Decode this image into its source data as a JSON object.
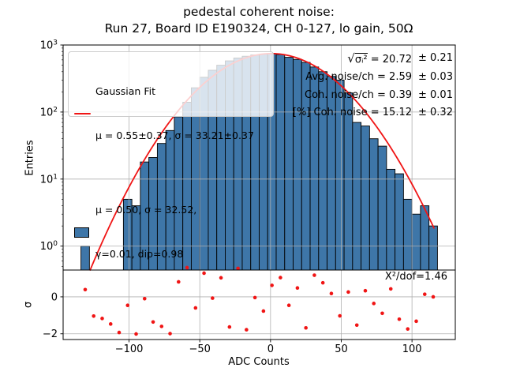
{
  "chart_data": [
    {
      "type": "bar",
      "title_line1": "pedestal coherent noise:",
      "title_line2": "Run 27, Board ID E190324, CH 0-127, lo gain, 50Ω",
      "ylabel": "Entries",
      "yscale": "log",
      "grid": true,
      "xlim": [
        -146.6,
        130.6
      ],
      "ylim": [
        0.44,
        1000
      ],
      "bin_start": -134,
      "bin_width": 6,
      "counts": [
        1,
        0,
        0,
        0,
        0,
        5,
        4,
        18,
        21,
        34,
        53,
        85,
        140,
        230,
        330,
        420,
        500,
        580,
        640,
        680,
        710,
        730,
        745,
        720,
        655,
        610,
        550,
        470,
        400,
        340,
        300,
        193,
        70,
        62,
        40,
        31,
        14,
        12,
        5,
        3,
        4,
        2
      ],
      "xticks": [
        -100,
        -50,
        0,
        50,
        100
      ],
      "xtick_labels": [
        "−100",
        "−50",
        "0",
        "50",
        "100"
      ],
      "ytick_exponents": [
        3,
        2,
        1,
        0
      ],
      "bar_color": "#3e76a8",
      "bar_edge_color": "#000000",
      "grid_color": "#b0b0b0",
      "fit_line": {
        "label": "Gaussian Fit",
        "color": "#f01515",
        "amplitude": 745,
        "mu": 0.55,
        "sigma": 33.21,
        "x_start": -127.5,
        "x_end": 116
      },
      "legend": {
        "position": "upper left",
        "gaussian_label": "Gaussian Fit",
        "gaussian_params": "μ = 0.55±0.37, σ = 33.21±0.37",
        "hist_params_line1": "μ = 0.50, σ = 32.52,",
        "hist_params_line2": "γ=0.01, dip=0.98"
      },
      "stats_box": {
        "row1": {
          "sqrt_sign": "√",
          "radicand": "σᵢ²",
          "rest": " = 20.72",
          "err": "± 0.21"
        },
        "row2": {
          "main": "Avg. noise/ch = 2.59",
          "err": "± 0.03"
        },
        "row3": {
          "main": "Coh. noise/ch = 0.39",
          "err": "± 0.01"
        },
        "row4": {
          "main": "[%] Coh. noise = 15.12",
          "err": "± 0.32"
        }
      }
    },
    {
      "type": "scatter",
      "ylabel": "σ",
      "xlabel": "ADC Counts",
      "ylim": [
        -2.31,
        1.45
      ],
      "yticks": [
        0,
        -2
      ],
      "ytick_labels": [
        "0",
        "−2"
      ],
      "marker_color": "#f01515",
      "annotation": "Χ²/dof=1.46",
      "x": [
        -131,
        -125,
        -119,
        -113,
        -107,
        -101,
        -95,
        -89,
        -83,
        -77,
        -71,
        -65,
        -59,
        -53,
        -47,
        -41,
        -35,
        -29,
        -23,
        -17,
        -11,
        -5,
        1,
        7,
        13,
        19,
        25,
        31,
        37,
        43,
        49,
        55,
        61,
        67,
        73,
        79,
        85,
        91,
        97,
        103,
        109,
        115
      ],
      "y": [
        0.39,
        -1.04,
        -1.17,
        -1.47,
        -1.93,
        -0.46,
        -2.01,
        -0.1,
        -1.36,
        -1.6,
        -1.99,
        0.81,
        1.58,
        -0.6,
        1.28,
        -0.07,
        1.03,
        -1.63,
        1.54,
        -1.78,
        -0.04,
        -0.77,
        0.62,
        1.04,
        -0.46,
        0.48,
        -1.68,
        1.17,
        0.76,
        0.18,
        -1.03,
        0.26,
        -1.53,
        0.33,
        -0.36,
        -0.89,
        0.43,
        -1.21,
        -1.74,
        -1.32,
        0.14,
        0.0
      ]
    }
  ]
}
